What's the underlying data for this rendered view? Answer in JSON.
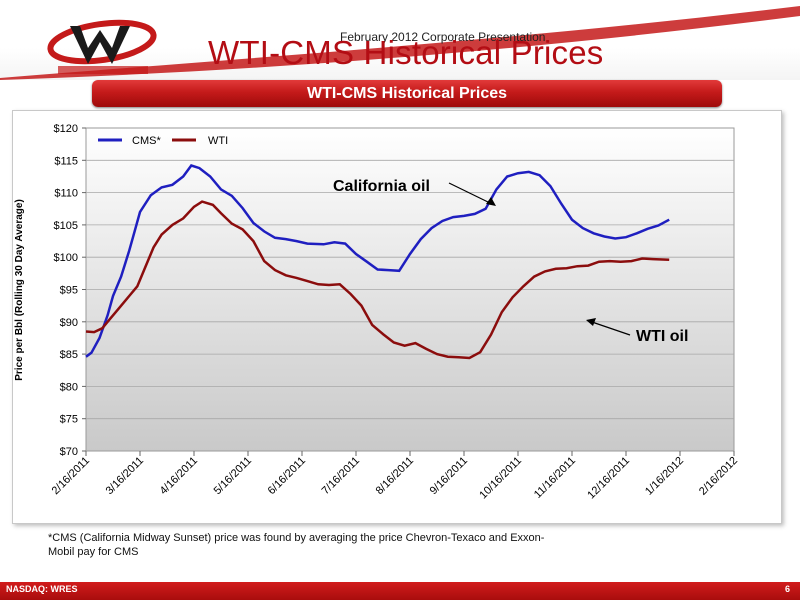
{
  "header": {
    "subtitle": "February 2012 Corporate Presentation",
    "title": "WTI-CMS Historical Prices",
    "logo_icon": "warren-logo-icon"
  },
  "banner": {
    "text": "WTI-CMS Historical Prices"
  },
  "footnote": "*CMS (California Midway Sunset) price was found by averaging the price Chevron-Texaco and Exxon-Mobil pay for CMS",
  "footer": {
    "left": "NASDAQ: WRES",
    "right": "6"
  },
  "colors": {
    "cms": "#1f1fc0",
    "wti": "#8b0d0d",
    "accent": "#c41a1a"
  },
  "chart_data": {
    "type": "line",
    "ylabel": "Price per Bbl (Rolling 30 Day Average)",
    "ylim": [
      70,
      120
    ],
    "yticks": [
      "$70",
      "$75",
      "$80",
      "$85",
      "$90",
      "$95",
      "$100",
      "$105",
      "$110",
      "$115",
      "$120"
    ],
    "x_ticks": [
      "2/16/2011",
      "3/16/2011",
      "4/16/2011",
      "5/16/2011",
      "6/16/2011",
      "7/16/2011",
      "8/16/2011",
      "9/16/2011",
      "10/16/2011",
      "11/16/2011",
      "12/16/2011",
      "1/16/2012",
      "2/16/2012"
    ],
    "legend": [
      "CMS*",
      "WTI"
    ],
    "legend_position": "top-left",
    "annotations": [
      {
        "text": "California oil",
        "points_to": "CMS*"
      },
      {
        "text": "WTI oil",
        "points_to": "WTI"
      }
    ],
    "series": [
      {
        "name": "CMS*",
        "points": [
          [
            0,
            84.6
          ],
          [
            0.1,
            85.2
          ],
          [
            0.25,
            87.5
          ],
          [
            0.4,
            91
          ],
          [
            0.5,
            94
          ],
          [
            0.65,
            97
          ],
          [
            0.8,
            101
          ],
          [
            0.9,
            104
          ],
          [
            1.0,
            107
          ],
          [
            1.2,
            109.6
          ],
          [
            1.4,
            110.8
          ],
          [
            1.6,
            111.2
          ],
          [
            1.8,
            112.5
          ],
          [
            1.95,
            114.2
          ],
          [
            2.1,
            113.8
          ],
          [
            2.3,
            112.5
          ],
          [
            2.5,
            110.5
          ],
          [
            2.7,
            109.5
          ],
          [
            2.9,
            107.6
          ],
          [
            3.1,
            105.3
          ],
          [
            3.3,
            104.0
          ],
          [
            3.5,
            103.0
          ],
          [
            3.7,
            102.8
          ],
          [
            3.9,
            102.5
          ],
          [
            4.1,
            102.1
          ],
          [
            4.4,
            102.0
          ],
          [
            4.6,
            102.3
          ],
          [
            4.8,
            102.1
          ],
          [
            5.0,
            100.5
          ],
          [
            5.2,
            99.3
          ],
          [
            5.4,
            98.1
          ],
          [
            5.6,
            98.0
          ],
          [
            5.8,
            97.9
          ],
          [
            6.0,
            100.5
          ],
          [
            6.2,
            102.8
          ],
          [
            6.4,
            104.5
          ],
          [
            6.6,
            105.6
          ],
          [
            6.8,
            106.2
          ],
          [
            7.0,
            106.4
          ],
          [
            7.2,
            106.7
          ],
          [
            7.4,
            107.5
          ],
          [
            7.6,
            110.5
          ],
          [
            7.8,
            112.5
          ],
          [
            8.0,
            113.0
          ],
          [
            8.2,
            113.2
          ],
          [
            8.4,
            112.7
          ],
          [
            8.6,
            111.0
          ],
          [
            8.8,
            108.3
          ],
          [
            9.0,
            105.8
          ],
          [
            9.2,
            104.5
          ],
          [
            9.4,
            103.7
          ],
          [
            9.6,
            103.2
          ],
          [
            9.8,
            102.9
          ],
          [
            10.0,
            103.1
          ],
          [
            10.2,
            103.7
          ],
          [
            10.4,
            104.4
          ],
          [
            10.6,
            104.9
          ],
          [
            10.8,
            105.8
          ]
        ]
      },
      {
        "name": "WTI",
        "points": [
          [
            0,
            88.5
          ],
          [
            0.15,
            88.4
          ],
          [
            0.3,
            89.0
          ],
          [
            0.45,
            90.5
          ],
          [
            0.6,
            92.0
          ],
          [
            0.8,
            94.0
          ],
          [
            0.95,
            95.5
          ],
          [
            1.1,
            98.5
          ],
          [
            1.25,
            101.5
          ],
          [
            1.4,
            103.5
          ],
          [
            1.6,
            105.0
          ],
          [
            1.8,
            106.0
          ],
          [
            2.0,
            107.8
          ],
          [
            2.15,
            108.6
          ],
          [
            2.35,
            108.1
          ],
          [
            2.5,
            106.8
          ],
          [
            2.7,
            105.2
          ],
          [
            2.9,
            104.3
          ],
          [
            3.1,
            102.5
          ],
          [
            3.3,
            99.4
          ],
          [
            3.5,
            98.0
          ],
          [
            3.7,
            97.2
          ],
          [
            3.9,
            96.8
          ],
          [
            4.1,
            96.3
          ],
          [
            4.3,
            95.8
          ],
          [
            4.5,
            95.7
          ],
          [
            4.7,
            95.8
          ],
          [
            4.9,
            94.3
          ],
          [
            5.1,
            92.5
          ],
          [
            5.3,
            89.5
          ],
          [
            5.5,
            88.1
          ],
          [
            5.7,
            86.8
          ],
          [
            5.9,
            86.3
          ],
          [
            6.1,
            86.7
          ],
          [
            6.3,
            85.8
          ],
          [
            6.5,
            85.0
          ],
          [
            6.7,
            84.6
          ],
          [
            6.9,
            84.5
          ],
          [
            7.1,
            84.4
          ],
          [
            7.3,
            85.3
          ],
          [
            7.5,
            88.0
          ],
          [
            7.7,
            91.5
          ],
          [
            7.9,
            93.8
          ],
          [
            8.1,
            95.5
          ],
          [
            8.3,
            97.0
          ],
          [
            8.5,
            97.8
          ],
          [
            8.7,
            98.2
          ],
          [
            8.9,
            98.3
          ],
          [
            9.1,
            98.6
          ],
          [
            9.3,
            98.7
          ],
          [
            9.5,
            99.3
          ],
          [
            9.7,
            99.4
          ],
          [
            9.9,
            99.3
          ],
          [
            10.1,
            99.4
          ],
          [
            10.3,
            99.8
          ],
          [
            10.5,
            99.7
          ],
          [
            10.8,
            99.6
          ]
        ]
      }
    ]
  }
}
